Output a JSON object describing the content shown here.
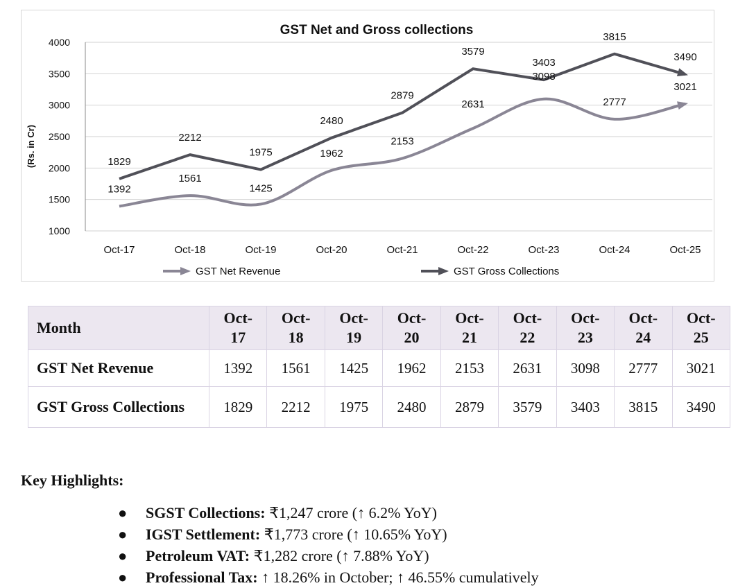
{
  "chart_data": {
    "type": "line",
    "title": "GST Net and Gross collections",
    "ylabel": "(Rs. in Cr)",
    "xlabel": "",
    "categories": [
      "Oct-17",
      "Oct-18",
      "Oct-19",
      "Oct-20",
      "Oct-21",
      "Oct-22",
      "Oct-23",
      "Oct-24",
      "Oct-25"
    ],
    "ylim": [
      1000,
      4000
    ],
    "yticks": [
      1000,
      1500,
      2000,
      2500,
      3000,
      3500,
      4000
    ],
    "grid": true,
    "legend_position": "bottom",
    "series": [
      {
        "name": "GST Net Revenue",
        "values": [
          1392,
          1561,
          1425,
          1962,
          2153,
          2631,
          3098,
          2777,
          3021
        ],
        "color": "#8a8695",
        "smooth": true
      },
      {
        "name": "GST Gross Collections",
        "values": [
          1829,
          2212,
          1975,
          2480,
          2879,
          3579,
          3403,
          3815,
          3490
        ],
        "color": "#505058",
        "smooth": false
      }
    ]
  },
  "table": {
    "header_label": "Month",
    "months": [
      "Oct-17",
      "Oct-18",
      "Oct-19",
      "Oct-20",
      "Oct-21",
      "Oct-22",
      "Oct-23",
      "Oct-24",
      "Oct-25"
    ],
    "rows": [
      {
        "label": "GST Net Revenue",
        "values": [
          "1392",
          "1561",
          "1425",
          "1962",
          "2153",
          "2631",
          "3098",
          "2777",
          "3021"
        ]
      },
      {
        "label": "GST Gross Collections",
        "values": [
          "1829",
          "2212",
          "1975",
          "2480",
          "2879",
          "3579",
          "3403",
          "3815",
          "3490"
        ]
      }
    ]
  },
  "highlights": {
    "title": "Key Highlights:",
    "bullet": "●",
    "items": [
      {
        "label": "SGST Collections:",
        "text": " ₹1,247 crore (↑ 6.2% YoY)"
      },
      {
        "label": "IGST Settlement:",
        "text": " ₹1,773 crore (↑ 10.65% YoY)"
      },
      {
        "label": "Petroleum VAT:",
        "text": " ₹1,282 crore (↑ 7.88% YoY)"
      },
      {
        "label": "Professional Tax:",
        "text": " ↑ 18.26% in October; ↑ 46.55% cumulatively"
      }
    ]
  }
}
